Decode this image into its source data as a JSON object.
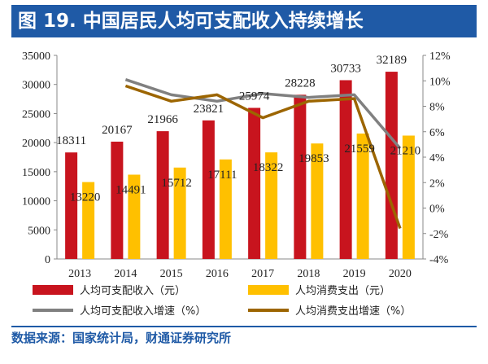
{
  "header": {
    "title": "图 19. 中国居民人均可支配收入持续增长"
  },
  "footer": {
    "source": "数据来源：国家统计局，财通证券研究所"
  },
  "colors": {
    "title_bg": "#1f5aa6",
    "income_bar": "#c8141e",
    "spending_bar": "#ffc000",
    "income_growth_line": "#808080",
    "spending_growth_line": "#9c6500"
  },
  "chart_data": {
    "type": "bar",
    "title": "图 19. 中国居民人均可支配收入持续增长",
    "categories": [
      "2013",
      "2014",
      "2015",
      "2016",
      "2017",
      "2018",
      "2019",
      "2020"
    ],
    "y_left": {
      "lim": [
        0,
        35000
      ],
      "ticks": [
        "0",
        "5000",
        "10000",
        "15000",
        "20000",
        "25000",
        "30000",
        "35000"
      ]
    },
    "y_right": {
      "lim": [
        -4,
        12
      ],
      "ticks": [
        "-4%",
        "-2%",
        "0%",
        "2%",
        "4%",
        "6%",
        "8%",
        "10%",
        "12%"
      ]
    },
    "series": [
      {
        "name": "人均可支配收入（元）",
        "kind": "bar",
        "axis": "left",
        "values": [
          18311,
          20167,
          21966,
          23821,
          25974,
          28228,
          30733,
          32189
        ],
        "labels": [
          "18311",
          "20167",
          "21966",
          "23821",
          "25974",
          "28228",
          "30733",
          "32189"
        ]
      },
      {
        "name": "人均消费支出（元）",
        "kind": "bar",
        "axis": "left",
        "values": [
          13220,
          14491,
          15712,
          17111,
          18322,
          19853,
          21559,
          21210
        ],
        "labels": [
          "13220",
          "14491",
          "15712",
          "17111",
          "18322",
          "19853",
          "21559",
          "21210"
        ]
      },
      {
        "name": "人均可支配收入增速（%）",
        "kind": "line",
        "axis": "right",
        "values": [
          null,
          10.1,
          8.9,
          8.4,
          9.0,
          8.7,
          8.9,
          4.7
        ]
      },
      {
        "name": "人均消费支出增速（%）",
        "kind": "line",
        "axis": "right",
        "values": [
          null,
          9.6,
          8.4,
          8.9,
          7.1,
          8.4,
          8.6,
          -1.6
        ]
      }
    ],
    "legend_position": "bottom",
    "grid": false
  }
}
